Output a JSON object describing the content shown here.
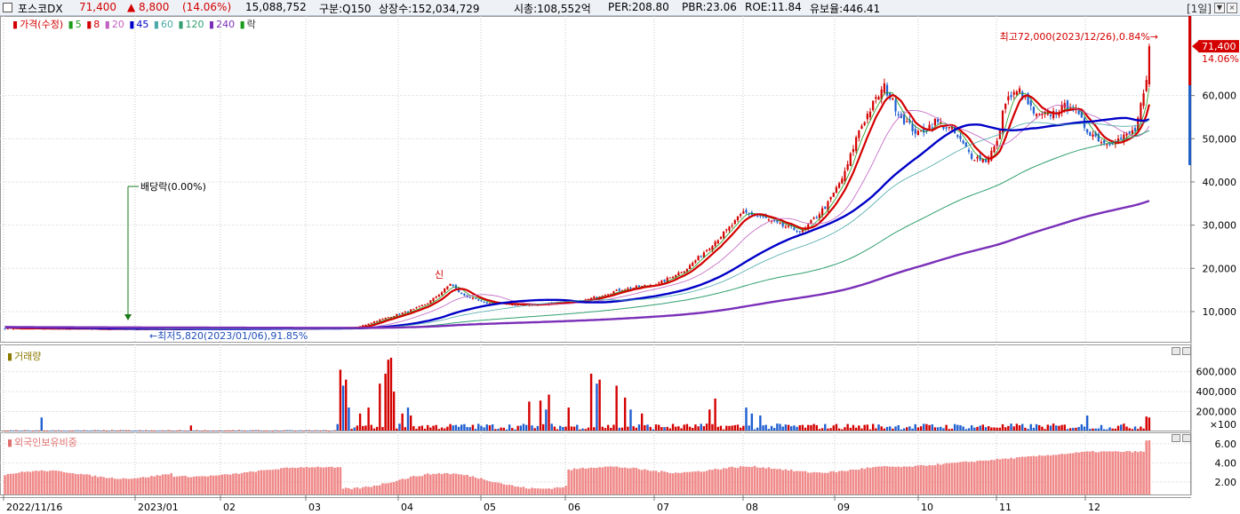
{
  "header": {
    "stock_name": "포스코DX",
    "price": "71,400",
    "change": "▲ 8,800",
    "change_pct": "(14.06%)",
    "volume": "15,088,752",
    "category": "구분:Q150",
    "listed_shares": "상장수:152,034,729",
    "market_cap": "시총:108,552억",
    "per": "PER:208.80",
    "pbr": "PBR:23.06",
    "roe": "ROE:11.84",
    "float_ratio": "유보율:446.41",
    "period": "[1일]",
    "period_arrow": "▼",
    "close_icon": "×",
    "up_color": "#d40000",
    "down_color": "#1f5fd1"
  },
  "price_legend": {
    "price_label": "가격(수정)",
    "ma": [
      {
        "label": "5",
        "color": "#1a9a1a"
      },
      {
        "label": "8",
        "color": "#d40000"
      },
      {
        "label": "20",
        "color": "#c060c0"
      },
      {
        "label": "45",
        "color": "#0000c8"
      },
      {
        "label": "60",
        "color": "#4aa8a8"
      },
      {
        "label": "120",
        "color": "#2f9f6f"
      },
      {
        "label": "240",
        "color": "#7a2fb8"
      }
    ],
    "drop_label": "락"
  },
  "annotations": {
    "high": "최고72,000(2023/12/26),0.84%→",
    "low": "←최저5,820(2023/01/06),91.85%",
    "dividend": "배당락(0.00%)",
    "badge_price": "71,400",
    "badge_pct": "14.06%",
    "new_high_marker": "신"
  },
  "volume_legend": {
    "label": "거래량"
  },
  "foreign_legend": {
    "label": "외국인보유비중"
  },
  "chart_data": [
    {
      "type": "candlestick",
      "title": "가격(수정)",
      "x_ticks": [
        "2022/11/16",
        "2023/01",
        "02",
        "03",
        "04",
        "05",
        "06",
        "07",
        "08",
        "09",
        "10",
        "11",
        "12"
      ],
      "y_ticks": [
        "10,000",
        "20,000",
        "30,000",
        "40,000",
        "50,000",
        "60,000"
      ],
      "ylim": [
        2800,
        78000
      ],
      "close_anchors": [
        [
          0,
          6100
        ],
        [
          30,
          6000
        ],
        [
          60,
          5950
        ],
        [
          90,
          6100
        ],
        [
          110,
          6100
        ],
        [
          125,
          6300
        ],
        [
          130,
          7500
        ],
        [
          145,
          10500
        ],
        [
          150,
          12000
        ],
        [
          155,
          14500
        ],
        [
          158,
          16500
        ],
        [
          162,
          14000
        ],
        [
          170,
          12000
        ],
        [
          185,
          11500
        ],
        [
          205,
          12500
        ],
        [
          218,
          15000
        ],
        [
          232,
          16500
        ],
        [
          242,
          20000
        ],
        [
          250,
          25000
        ],
        [
          258,
          30000
        ],
        [
          262,
          33000
        ],
        [
          268,
          32000
        ],
        [
          275,
          30000
        ],
        [
          283,
          28500
        ],
        [
          292,
          35000
        ],
        [
          298,
          42000
        ],
        [
          303,
          52000
        ],
        [
          308,
          58000
        ],
        [
          312,
          62000
        ],
        [
          318,
          55000
        ],
        [
          324,
          51000
        ],
        [
          330,
          54000
        ],
        [
          336,
          52000
        ],
        [
          343,
          46000
        ],
        [
          348,
          45000
        ],
        [
          352,
          49000
        ],
        [
          355,
          59000
        ],
        [
          360,
          61000
        ],
        [
          366,
          55000
        ],
        [
          372,
          56000
        ],
        [
          378,
          58000
        ],
        [
          384,
          52000
        ],
        [
          390,
          49000
        ],
        [
          396,
          50000
        ],
        [
          401,
          52000
        ],
        [
          405,
          62600
        ],
        [
          406,
          71400
        ]
      ],
      "high": 72000,
      "last": 71400
    },
    {
      "type": "bar",
      "title": "거래량",
      "y_ticks": [
        "200,000",
        "400,000",
        "600,000"
      ],
      "unit": "×100",
      "ylim": [
        0,
        820000
      ],
      "spikes": [
        [
          13,
          140000
        ],
        [
          66,
          60000
        ],
        [
          119,
          620000
        ],
        [
          120,
          460000
        ],
        [
          121,
          520000
        ],
        [
          122,
          240000
        ],
        [
          126,
          180000
        ],
        [
          129,
          240000
        ],
        [
          133,
          480000
        ],
        [
          135,
          580000
        ],
        [
          136,
          720000
        ],
        [
          137,
          740000
        ],
        [
          138,
          400000
        ],
        [
          141,
          180000
        ],
        [
          143,
          240000
        ],
        [
          144,
          160000
        ],
        [
          186,
          300000
        ],
        [
          190,
          310000
        ],
        [
          192,
          220000
        ],
        [
          193,
          370000
        ],
        [
          200,
          240000
        ],
        [
          208,
          580000
        ],
        [
          210,
          480000
        ],
        [
          211,
          520000
        ],
        [
          217,
          460000
        ],
        [
          220,
          340000
        ],
        [
          222,
          220000
        ],
        [
          226,
          180000
        ],
        [
          250,
          220000
        ],
        [
          252,
          330000
        ],
        [
          263,
          240000
        ],
        [
          265,
          180000
        ],
        [
          268,
          160000
        ],
        [
          384,
          160000
        ],
        [
          405,
          150000
        ],
        [
          406,
          140000
        ]
      ]
    },
    {
      "type": "bar",
      "title": "외국인보유비중",
      "y_ticks": [
        "2.00",
        "4.00",
        "6.00"
      ],
      "ylim": [
        0.6,
        7.2
      ]
    }
  ]
}
